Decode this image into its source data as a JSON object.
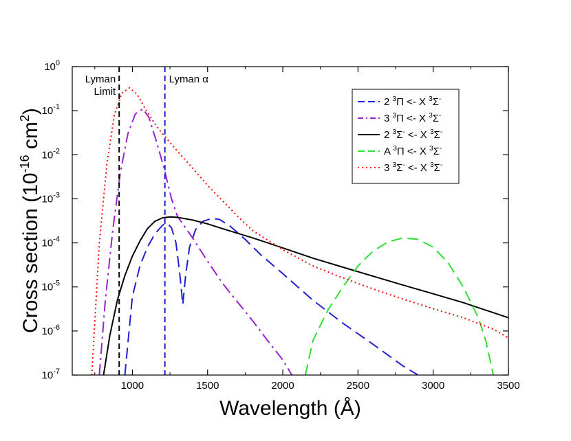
{
  "chart_data": {
    "type": "line",
    "title": "",
    "xlabel": "Wavelength (Å)",
    "ylabel_parts": {
      "main": "Cross section (10",
      "exp": "-16",
      "unit": " cm",
      "unit_exp": "2",
      "close": ")"
    },
    "xlim": [
      600,
      3500
    ],
    "ylim": [
      1e-07,
      1
    ],
    "yscale": "log",
    "xticks": [
      1000,
      1500,
      2000,
      2500,
      3000,
      3500
    ],
    "yticks": [
      {
        "value": 1e-07,
        "base": "10",
        "exp": "-7"
      },
      {
        "value": 1e-06,
        "base": "10",
        "exp": "-6"
      },
      {
        "value": 1e-05,
        "base": "10",
        "exp": "-5"
      },
      {
        "value": 0.0001,
        "base": "10",
        "exp": "-4"
      },
      {
        "value": 0.001,
        "base": "10",
        "exp": "-3"
      },
      {
        "value": 0.01,
        "base": "10",
        "exp": "-2"
      },
      {
        "value": 0.1,
        "base": "10",
        "exp": "-1"
      },
      {
        "value": 1,
        "base": "10",
        "exp": "0"
      }
    ],
    "grid": false,
    "legend_position": "top-right",
    "vlines": [
      {
        "x": 912,
        "label_lines": [
          "Lyman",
          "Limit"
        ],
        "color": "#000000",
        "dash": "8,5"
      },
      {
        "x": 1216,
        "label_lines": [
          "Lyman α"
        ],
        "color": "#1f1fd4",
        "dash": "8,5"
      }
    ],
    "series": [
      {
        "name": "2 ³Π <- X ³Σ⁻",
        "legend": {
          "pre": "2 ",
          "s1": "3",
          "sym1": "Π <- X ",
          "s2": "3",
          "sym2": "Σ",
          "sup2": "-"
        },
        "color": "#1f1fd4",
        "dash": "16,8",
        "width": 2,
        "points": [
          [
            950,
            1e-07
          ],
          [
            1000,
            6e-06
          ],
          [
            1050,
            3e-05
          ],
          [
            1100,
            8e-05
          ],
          [
            1150,
            0.00016
          ],
          [
            1200,
            0.00025
          ],
          [
            1230,
            0.00028
          ],
          [
            1260,
            0.00022
          ],
          [
            1290,
            0.0001
          ],
          [
            1315,
            2e-05
          ],
          [
            1335,
            4e-06
          ],
          [
            1355,
            2e-05
          ],
          [
            1380,
            8e-05
          ],
          [
            1420,
            0.0002
          ],
          [
            1470,
            0.00031
          ],
          [
            1530,
            0.00036
          ],
          [
            1580,
            0.00034
          ],
          [
            1650,
            0.00024
          ],
          [
            1750,
            0.00012
          ],
          [
            1850,
            5.5e-05
          ],
          [
            2000,
            2e-05
          ],
          [
            2200,
            5e-06
          ],
          [
            2400,
            1.5e-06
          ],
          [
            2600,
            5e-07
          ],
          [
            2800,
            1.6e-07
          ],
          [
            2900,
            1e-07
          ]
        ]
      },
      {
        "name": "3 ³Π <- X ³Σ⁻",
        "legend": {
          "pre": "3 ",
          "s1": "3",
          "sym1": "Π <- X ",
          "s2": "3",
          "sym2": "Σ",
          "sup2": "-"
        },
        "color": "#9a1fd0",
        "dash": "16,6,3,6",
        "width": 2,
        "points": [
          [
            780,
            1e-07
          ],
          [
            820,
            5e-06
          ],
          [
            870,
            0.0002
          ],
          [
            920,
            0.004
          ],
          [
            970,
            0.03
          ],
          [
            1020,
            0.085
          ],
          [
            1070,
            0.11
          ],
          [
            1110,
            0.07
          ],
          [
            1160,
            0.02
          ],
          [
            1210,
            0.005
          ],
          [
            1260,
            0.001
          ],
          [
            1300,
            0.0004
          ],
          [
            1400,
            0.00013
          ],
          [
            1500,
            3.8e-05
          ],
          [
            1600,
            1.2e-05
          ],
          [
            1700,
            4.5e-06
          ],
          [
            1800,
            1.7e-06
          ],
          [
            1900,
            6e-07
          ],
          [
            2000,
            2.2e-07
          ],
          [
            2060,
            1e-07
          ]
        ]
      },
      {
        "name": "2 ³Σ⁻ <- X ³Σ⁻",
        "legend": {
          "pre": "2 ",
          "s1": "3",
          "sym1": "Σ",
          "sup1": "-",
          "sym1b": " <- X ",
          "s2": "3",
          "sym2": "Σ",
          "sup2": "-"
        },
        "color": "#000000",
        "dash": "",
        "width": 2,
        "points": [
          [
            808,
            1e-07
          ],
          [
            850,
            8e-07
          ],
          [
            900,
            5e-06
          ],
          [
            950,
            1.8e-05
          ],
          [
            1000,
            5e-05
          ],
          [
            1050,
            0.00011
          ],
          [
            1100,
            0.00021
          ],
          [
            1150,
            0.00031
          ],
          [
            1200,
            0.00037
          ],
          [
            1250,
            0.00039
          ],
          [
            1300,
            0.00038
          ],
          [
            1400,
            0.00033
          ],
          [
            1500,
            0.00027
          ],
          [
            1600,
            0.00021
          ],
          [
            1800,
            0.00013
          ],
          [
            2000,
            7.7e-05
          ],
          [
            2200,
            4.5e-05
          ],
          [
            2400,
            2.8e-05
          ],
          [
            2600,
            1.75e-05
          ],
          [
            2800,
            1.1e-05
          ],
          [
            3000,
            7e-06
          ],
          [
            3200,
            4.4e-06
          ],
          [
            3400,
            2.6e-06
          ],
          [
            3500,
            2e-06
          ]
        ]
      },
      {
        "name": "A ³Π <- X ³Σ⁻",
        "legend": {
          "pre": "A ",
          "s1": "3",
          "sym1": "Π <- X ",
          "s2": "3",
          "sym2": "Σ",
          "sup2": "-"
        },
        "color": "#2ee02e",
        "dash": "16,8",
        "width": 2,
        "points": [
          [
            2150,
            1e-07
          ],
          [
            2200,
            6e-07
          ],
          [
            2300,
            3e-06
          ],
          [
            2400,
            1e-05
          ],
          [
            2500,
            3e-05
          ],
          [
            2600,
            6.5e-05
          ],
          [
            2700,
            0.000105
          ],
          [
            2800,
            0.00013
          ],
          [
            2900,
            0.00012
          ],
          [
            3000,
            8e-05
          ],
          [
            3100,
            3.5e-05
          ],
          [
            3200,
            1e-05
          ],
          [
            3300,
            2e-06
          ],
          [
            3350,
            6e-07
          ],
          [
            3400,
            1e-07
          ]
        ]
      },
      {
        "name": "3 ³Σ⁻ <- X ³Σ⁻",
        "legend": {
          "pre": "3 ",
          "s1": "3",
          "sym1": "Σ",
          "sup1": "-",
          "sym1b": " <- X ",
          "s2": "3",
          "sym2": "Σ",
          "sup2": "-"
        },
        "color": "#ff0000",
        "dash": "2,4",
        "width": 2,
        "points": [
          [
            730,
            1e-07
          ],
          [
            780,
            0.0001
          ],
          [
            830,
            0.006
          ],
          [
            880,
            0.08
          ],
          [
            930,
            0.25
          ],
          [
            980,
            0.33
          ],
          [
            1030,
            0.24
          ],
          [
            1080,
            0.12
          ],
          [
            1150,
            0.05
          ],
          [
            1200,
            0.03
          ],
          [
            1300,
            0.012
          ],
          [
            1400,
            0.005
          ],
          [
            1500,
            0.002
          ],
          [
            1600,
            0.0009
          ],
          [
            1700,
            0.0004
          ],
          [
            1800,
            0.00019
          ],
          [
            2000,
            7e-05
          ],
          [
            2200,
            3e-05
          ],
          [
            2400,
            1.6e-05
          ],
          [
            2600,
            9e-06
          ],
          [
            2800,
            5.3e-06
          ],
          [
            3000,
            3.2e-06
          ],
          [
            3200,
            2e-06
          ],
          [
            3400,
            1.1e-06
          ],
          [
            3500,
            7e-07
          ]
        ]
      }
    ]
  }
}
